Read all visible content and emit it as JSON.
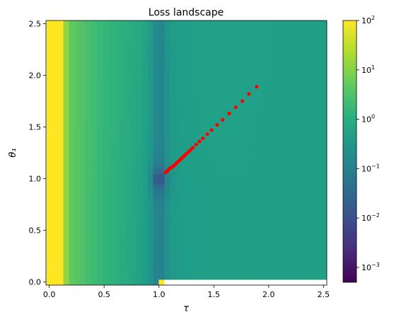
{
  "chart_data": {
    "type": "heatmap",
    "title": "Loss landscape",
    "xlabel": "τ",
    "ylabel": "θ₁",
    "xlim": [
      -0.03,
      2.53
    ],
    "ylim": [
      -0.03,
      2.53
    ],
    "x_ticks": [
      {
        "value": 0.0,
        "label": "0.0"
      },
      {
        "value": 0.5,
        "label": "0.5"
      },
      {
        "value": 1.0,
        "label": "1.0"
      },
      {
        "value": 1.5,
        "label": "1.5"
      },
      {
        "value": 2.0,
        "label": "2.0"
      },
      {
        "value": 2.5,
        "label": "2.5"
      }
    ],
    "y_ticks": [
      {
        "value": 0.0,
        "label": "0.0"
      },
      {
        "value": 0.5,
        "label": "0.5"
      },
      {
        "value": 1.0,
        "label": "1.0"
      },
      {
        "value": 1.5,
        "label": "1.5"
      },
      {
        "value": 2.0,
        "label": "2.0"
      },
      {
        "value": 2.5,
        "label": "2.5"
      }
    ],
    "grid": false,
    "colormap": "viridis",
    "color_scale": "log",
    "colorbar": {
      "min": 0.0005,
      "max": 100,
      "ticks": [
        {
          "value": 0.001,
          "base": "10",
          "exp": "−3"
        },
        {
          "value": 0.01,
          "base": "10",
          "exp": "−2"
        },
        {
          "value": 0.1,
          "base": "10",
          "exp": "−1"
        },
        {
          "value": 1,
          "base": "10",
          "exp": "0"
        },
        {
          "value": 10,
          "base": "10",
          "exp": "1"
        },
        {
          "value": 100,
          "base": "10",
          "exp": "2"
        }
      ]
    },
    "trajectory": {
      "color": "#ff0000",
      "x": [
        1.89,
        1.82,
        1.76,
        1.7,
        1.64,
        1.58,
        1.53,
        1.48,
        1.44,
        1.4,
        1.37,
        1.34,
        1.31,
        1.29,
        1.27,
        1.25,
        1.235,
        1.22,
        1.205,
        1.19,
        1.175,
        1.16,
        1.145,
        1.13,
        1.115,
        1.1,
        1.09,
        1.08,
        1.07,
        1.06
      ],
      "y": [
        1.89,
        1.82,
        1.75,
        1.69,
        1.63,
        1.57,
        1.52,
        1.47,
        1.43,
        1.39,
        1.36,
        1.33,
        1.3,
        1.28,
        1.26,
        1.24,
        1.225,
        1.21,
        1.195,
        1.18,
        1.165,
        1.15,
        1.135,
        1.12,
        1.11,
        1.1,
        1.09,
        1.08,
        1.07,
        1.06
      ]
    }
  }
}
